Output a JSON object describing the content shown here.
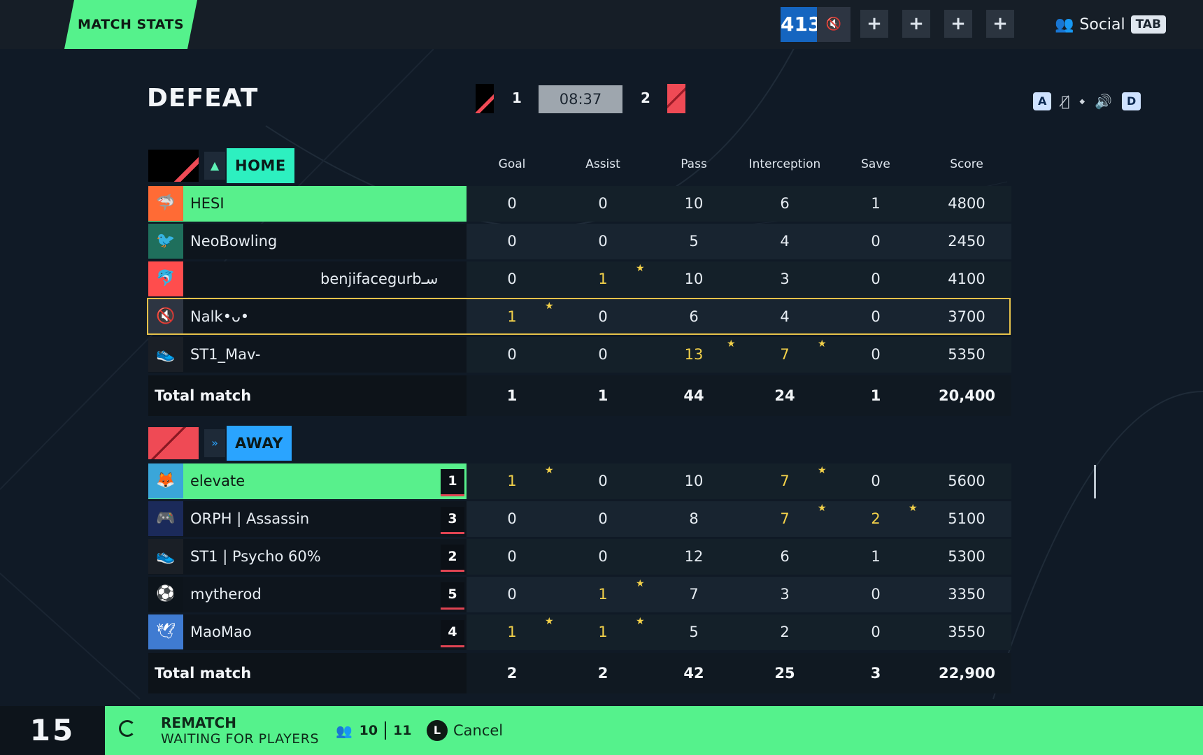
{
  "header": {
    "tab_title": "MATCH STATS",
    "player_level": "413",
    "social_label": "Social",
    "social_key": "TAB"
  },
  "match": {
    "result": "DEFEAT",
    "home_score": "1",
    "timer": "08:37",
    "away_score": "2"
  },
  "voice": {
    "left_key": "A",
    "right_key": "D"
  },
  "columns": [
    "Goal",
    "Assist",
    "Pass",
    "Interception",
    "Save",
    "Score"
  ],
  "home": {
    "label": "HOME",
    "rows": [
      {
        "name": "HESI",
        "stats": [
          "0",
          "0",
          "10",
          "6",
          "1",
          "4800"
        ],
        "stars": [],
        "me": true
      },
      {
        "name": "NeoBowling",
        "stats": [
          "0",
          "0",
          "5",
          "4",
          "0",
          "2450"
        ],
        "stars": []
      },
      {
        "name": "benjifacegurbسـ",
        "stats": [
          "0",
          "1",
          "10",
          "3",
          "0",
          "4100"
        ],
        "stars": [
          1
        ]
      },
      {
        "name": "Nalk•ᴗ•",
        "stats": [
          "1",
          "0",
          "6",
          "4",
          "0",
          "3700"
        ],
        "stars": [
          0
        ],
        "selected": true
      },
      {
        "name": "ST1_Mav-",
        "stats": [
          "0",
          "0",
          "13",
          "7",
          "0",
          "5350"
        ],
        "stars": [
          2,
          3
        ]
      }
    ],
    "total_label": "Total match",
    "totals": [
      "1",
      "1",
      "44",
      "24",
      "1",
      "20,400"
    ]
  },
  "away": {
    "label": "AWAY",
    "rows": [
      {
        "name": "elevate",
        "rank": "1",
        "stats": [
          "1",
          "0",
          "10",
          "7",
          "0",
          "5600"
        ],
        "stars": [
          0,
          3
        ],
        "me": true
      },
      {
        "name": "ORPH | Assassin",
        "rank": "3",
        "stats": [
          "0",
          "0",
          "8",
          "7",
          "2",
          "5100"
        ],
        "stars": [
          3,
          4
        ]
      },
      {
        "name": "ST1 | Psycho 60%",
        "rank": "2",
        "stats": [
          "0",
          "0",
          "12",
          "6",
          "1",
          "5300"
        ],
        "stars": []
      },
      {
        "name": "mytherod",
        "rank": "5",
        "stats": [
          "0",
          "1",
          "7",
          "3",
          "0",
          "3350"
        ],
        "stars": [
          1
        ]
      },
      {
        "name": "MaoMao",
        "rank": "4",
        "stats": [
          "1",
          "1",
          "5",
          "2",
          "0",
          "3550"
        ],
        "stars": [
          0,
          1
        ]
      }
    ],
    "total_label": "Total match",
    "totals": [
      "2",
      "2",
      "42",
      "25",
      "3",
      "22,900"
    ]
  },
  "footer": {
    "countdown": "15",
    "status_title": "REMATCH",
    "status_sub": "WAITING FOR PLAYERS",
    "players_ready": "10",
    "players_total": "11",
    "cancel_key": "L",
    "cancel_label": "Cancel"
  },
  "colors": {
    "accent_green": "#55f28c",
    "home_teal": "#2df0c0",
    "away_blue": "#2aa4ff",
    "highlight_yellow": "#f4d24a",
    "team_red": "#ef4a55"
  }
}
